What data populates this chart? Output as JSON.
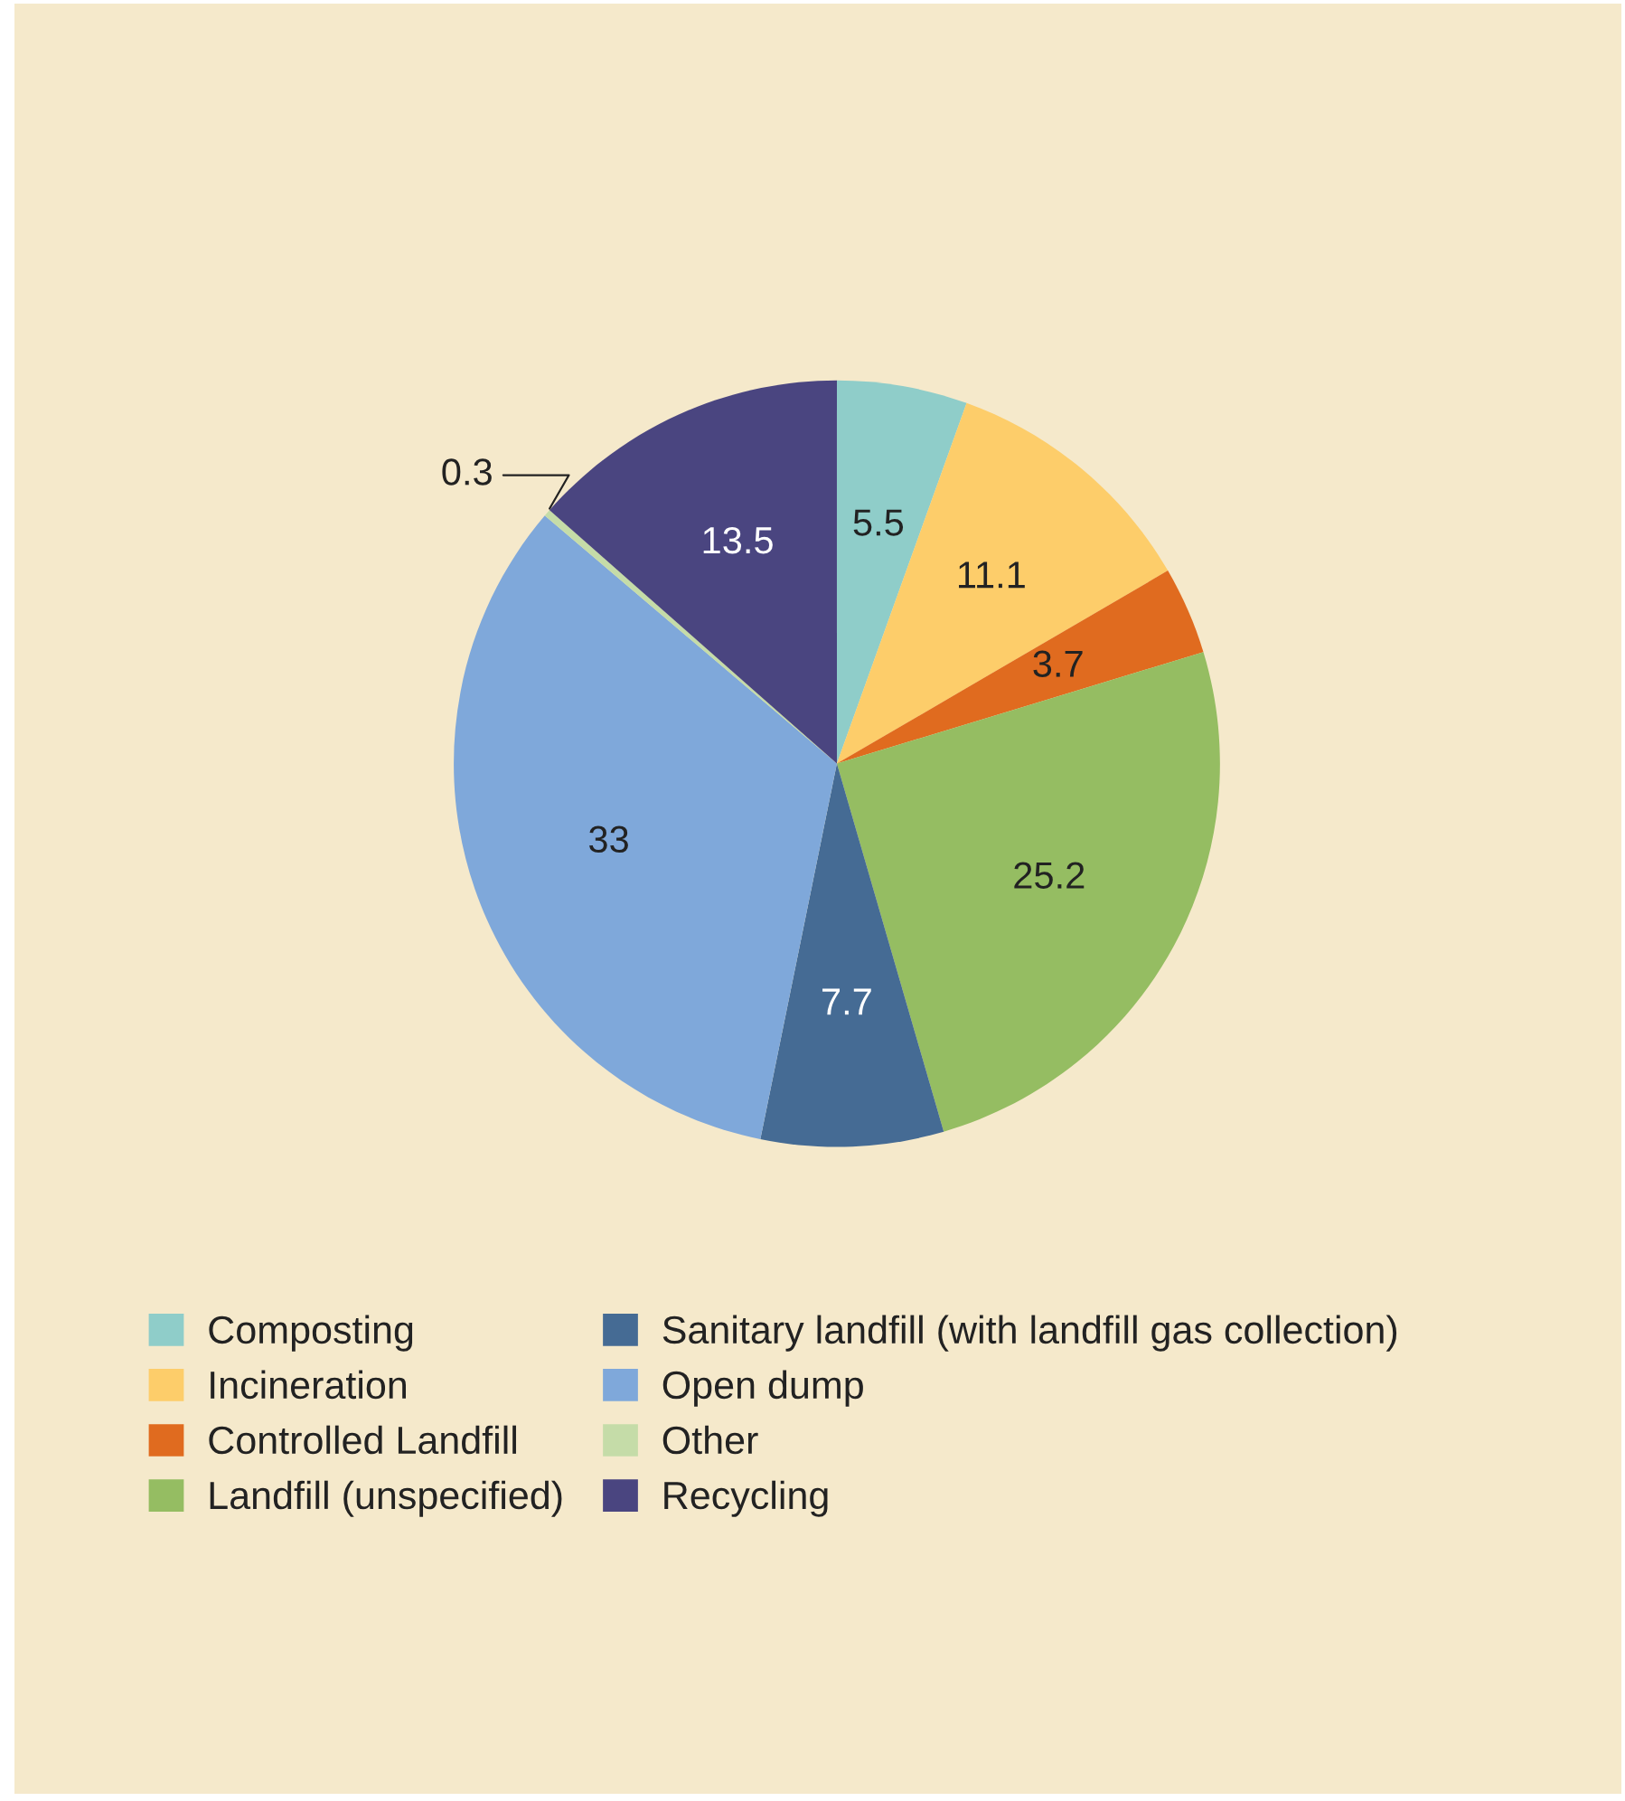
{
  "chart_data": {
    "type": "pie",
    "categories": [
      "Composting",
      "Incineration",
      "Controlled Landfill",
      "Landfill (unspecified)",
      "Sanitary landfill (with landfill gas collection)",
      "Open dump",
      "Other",
      "Recycling"
    ],
    "values": [
      5.5,
      11.1,
      3.7,
      25.2,
      7.7,
      33,
      0.3,
      13.5
    ],
    "colors": [
      "#8fcdc9",
      "#fdcd6a",
      "#e06b1f",
      "#95bd62",
      "#456b94",
      "#7fa8da",
      "#c5dca8",
      "#4a4580"
    ],
    "data_labels": true,
    "legend": "bottom"
  }
}
